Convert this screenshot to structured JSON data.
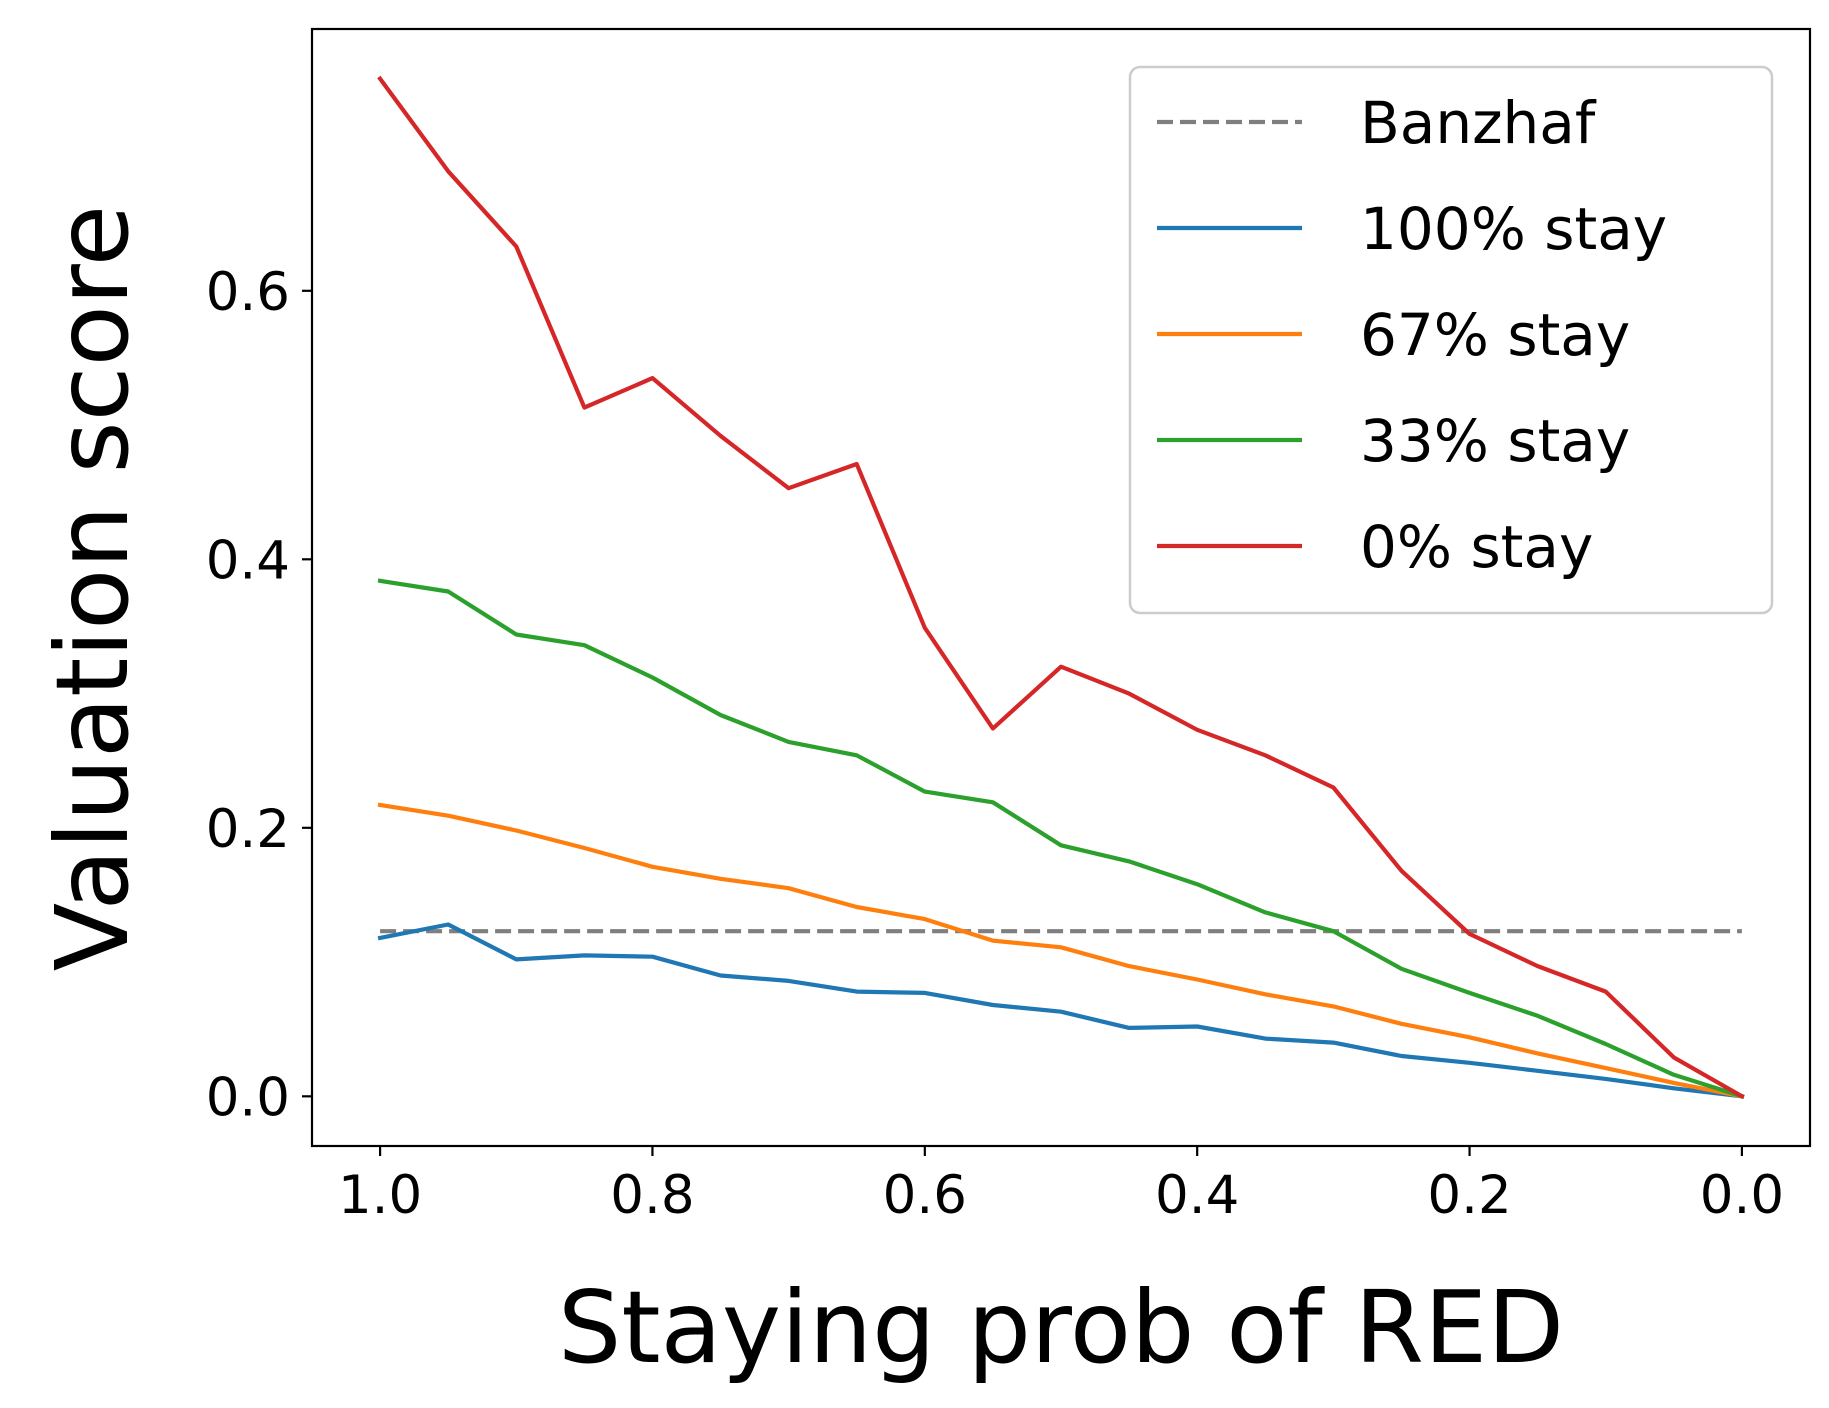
{
  "chart_data": {
    "type": "line",
    "title": "",
    "xlabel": "Staying prob of RED",
    "ylabel": "Valuation score",
    "xlim": [
      1.05,
      -0.05
    ],
    "ylim": [
      -0.037,
      0.795
    ],
    "x_inverted": true,
    "xticks": [
      1.0,
      0.8,
      0.6,
      0.4,
      0.2,
      0.0
    ],
    "xtick_labels": [
      "1.0",
      "0.8",
      "0.6",
      "0.4",
      "0.2",
      "0.0"
    ],
    "yticks": [
      0.0,
      0.2,
      0.4,
      0.6
    ],
    "ytick_labels": [
      "0.0",
      "0.2",
      "0.4",
      "0.6"
    ],
    "grid": false,
    "legend_position": "top-right",
    "x": [
      1.0,
      0.95,
      0.9,
      0.85,
      0.8,
      0.75,
      0.7,
      0.65,
      0.6,
      0.55,
      0.5,
      0.45,
      0.4,
      0.35,
      0.3,
      0.25,
      0.2,
      0.15,
      0.1,
      0.05,
      0.0
    ],
    "reference_lines": [
      {
        "name": "Banzhaf",
        "y": 0.123,
        "color": "#7f7f7f",
        "style": "dashed"
      }
    ],
    "series": [
      {
        "name": "100% stay",
        "color": "#1f77b4",
        "values": [
          0.118,
          0.128,
          0.102,
          0.105,
          0.104,
          0.09,
          0.086,
          0.078,
          0.077,
          0.068,
          0.063,
          0.051,
          0.052,
          0.043,
          0.04,
          0.03,
          0.025,
          0.019,
          0.013,
          0.006,
          0.0
        ]
      },
      {
        "name": "67% stay",
        "color": "#ff7f0e",
        "values": [
          0.217,
          0.209,
          0.198,
          0.185,
          0.171,
          0.162,
          0.155,
          0.141,
          0.132,
          0.116,
          0.111,
          0.097,
          0.087,
          0.076,
          0.067,
          0.054,
          0.044,
          0.032,
          0.021,
          0.01,
          0.0
        ]
      },
      {
        "name": "33% stay",
        "color": "#2ca02c",
        "values": [
          0.384,
          0.376,
          0.344,
          0.336,
          0.312,
          0.284,
          0.264,
          0.254,
          0.227,
          0.219,
          0.187,
          0.175,
          0.158,
          0.137,
          0.123,
          0.095,
          0.077,
          0.06,
          0.039,
          0.016,
          0.0
        ]
      },
      {
        "name": "0% stay",
        "color": "#d62728",
        "values": [
          0.758,
          0.689,
          0.633,
          0.513,
          0.535,
          0.492,
          0.453,
          0.471,
          0.349,
          0.274,
          0.32,
          0.3,
          0.273,
          0.254,
          0.23,
          0.168,
          0.121,
          0.097,
          0.078,
          0.029,
          0.0
        ]
      }
    ]
  }
}
